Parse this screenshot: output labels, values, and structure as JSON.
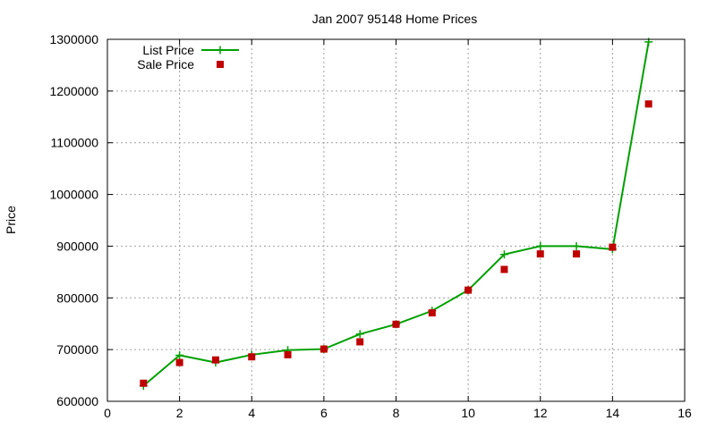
{
  "chart_data": {
    "type": "line",
    "title": "Jan 2007 95148 Home Prices",
    "xlabel": "",
    "ylabel": "Price",
    "xlim": [
      0,
      16
    ],
    "ylim": [
      600000,
      1300000
    ],
    "xticks": [
      "0",
      "2",
      "4",
      "6",
      "8",
      "10",
      "12",
      "14",
      "16"
    ],
    "yticks": [
      "600000",
      "700000",
      "800000",
      "900000",
      "1000000",
      "1100000",
      "1200000",
      "1300000"
    ],
    "grid": true,
    "legend_position": "top-left",
    "series": [
      {
        "name": "List Price",
        "style": "lines+points",
        "marker": "plus",
        "color": "#00a000",
        "x": [
          1,
          2,
          3,
          4,
          5,
          6,
          7,
          8,
          9,
          10,
          11,
          12,
          13,
          14,
          15
        ],
        "values": [
          630000,
          689000,
          675000,
          690000,
          699000,
          701000,
          730000,
          749000,
          775000,
          815000,
          884000,
          900000,
          900000,
          894000,
          1295000
        ]
      },
      {
        "name": "Sale Price",
        "style": "points",
        "marker": "square",
        "color": "#c00000",
        "x": [
          1,
          2,
          3,
          4,
          5,
          6,
          7,
          8,
          9,
          10,
          11,
          12,
          13,
          14,
          15
        ],
        "values": [
          635000,
          675000,
          680000,
          686000,
          690000,
          701000,
          715000,
          749000,
          771000,
          815000,
          855000,
          885000,
          885000,
          898000,
          1175000
        ]
      }
    ]
  }
}
